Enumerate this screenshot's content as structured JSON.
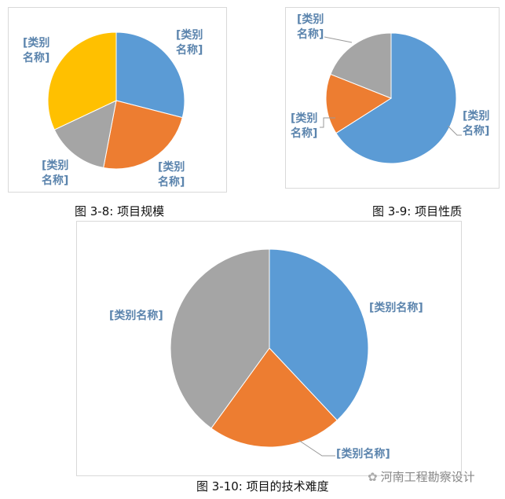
{
  "chart_data": [
    {
      "type": "pie",
      "caption": "图 3-8: 项目规模",
      "start_angle": "12 o'clock, clockwise",
      "slices": [
        {
          "label": "[类别名称]",
          "value": 29,
          "color": "#5b9bd5"
        },
        {
          "label": "[类别名称]",
          "value": 24,
          "color": "#ed7d31"
        },
        {
          "label": "[类别名称]",
          "value": 15,
          "color": "#a5a5a5"
        },
        {
          "label": "[类别名称]",
          "value": 32,
          "color": "#ffc000"
        }
      ]
    },
    {
      "type": "pie",
      "caption": "图 3-9: 项目性质",
      "start_angle": "12 o'clock, clockwise",
      "slices": [
        {
          "label": "[类别名称]",
          "value": 66,
          "color": "#5b9bd5"
        },
        {
          "label": "[类别名称]",
          "value": 15,
          "color": "#ed7d31"
        },
        {
          "label": "[类别名称]",
          "value": 19,
          "color": "#a5a5a5"
        }
      ]
    },
    {
      "type": "pie",
      "caption": "图 3-10:  项目的技术难度",
      "start_angle": "12 o'clock, clockwise",
      "slices": [
        {
          "label": "[类别名称]",
          "value": 38,
          "color": "#5b9bd5"
        },
        {
          "label": "[类别名称]",
          "value": 22,
          "color": "#ed7d31"
        },
        {
          "label": "[类别名称]",
          "value": 40,
          "color": "#a5a5a5"
        }
      ]
    }
  ],
  "watermark": "河南工程勘察设计"
}
